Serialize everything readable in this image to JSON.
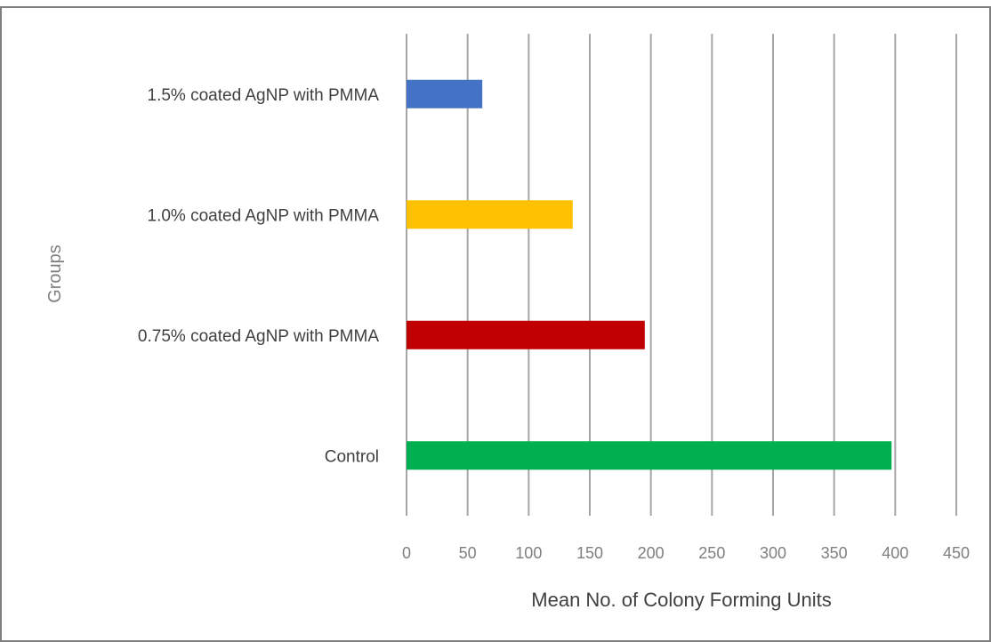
{
  "chart_data": {
    "type": "bar",
    "orientation": "horizontal",
    "title": "",
    "xlabel": "Mean No. of Colony Forming Units",
    "ylabel": "Groups",
    "xlim": [
      0,
      450
    ],
    "x_ticks": [
      0,
      50,
      100,
      150,
      200,
      250,
      300,
      350,
      400,
      450
    ],
    "grid": "vertical",
    "legend": "none",
    "categories": [
      "Control",
      "0.75% coated AgNP with PMMA",
      "1.0% coated AgNP with PMMA",
      "1.5% coated AgNP with PMMA"
    ],
    "values": [
      397,
      195,
      136,
      62
    ],
    "colors": [
      "#00b050",
      "#c00000",
      "#ffc000",
      "#4472c4"
    ]
  }
}
